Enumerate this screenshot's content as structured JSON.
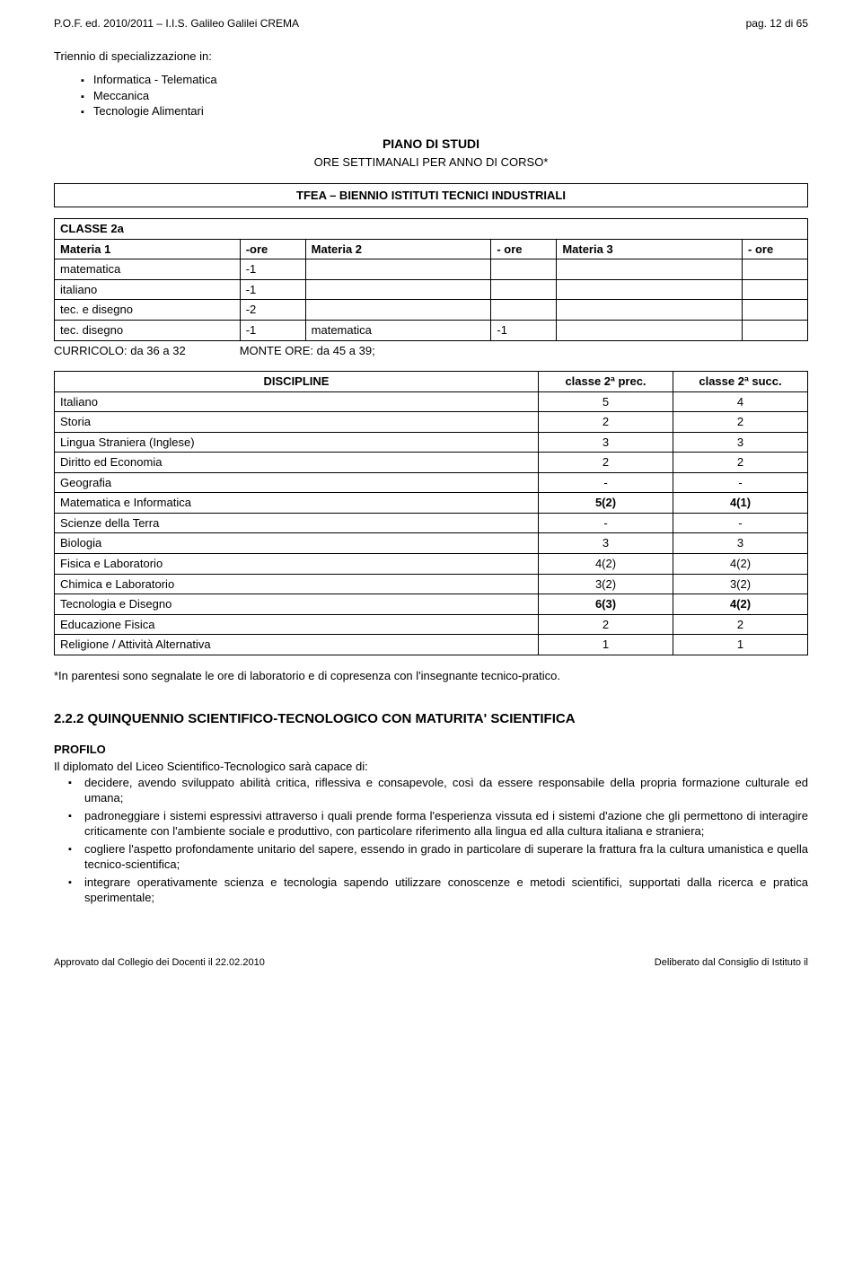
{
  "header": {
    "left": "P.O.F. ed. 2010/2011 – I.I.S. Galileo Galilei CREMA",
    "right": "pag. 12 di 65"
  },
  "intro": "Triennio di specializzazione in:",
  "spec_list": [
    "Informatica - Telematica",
    "Meccanica",
    "Tecnologie Alimentari"
  ],
  "center_title": "PIANO DI STUDI",
  "center_sub": "ORE SETTIMANALI PER ANNO DI CORSO*",
  "box_title": "TFEA – BIENNIO ISTITUTI TECNICI INDUSTRIALI",
  "classe_table": {
    "title": "CLASSE 2a",
    "cols": [
      "Materia 1",
      "-ore",
      "Materia 2",
      "- ore",
      "Materia 3",
      "- ore"
    ],
    "rows": [
      [
        "matematica",
        "-1",
        "",
        "",
        "",
        ""
      ],
      [
        "italiano",
        "-1",
        "",
        "",
        "",
        ""
      ],
      [
        "tec. e disegno",
        "-2",
        "",
        "",
        "",
        ""
      ],
      [
        "tec. disegno",
        "-1",
        "matematica",
        "-1",
        "",
        ""
      ]
    ]
  },
  "curricolo": {
    "left": "CURRICOLO: da 36 a 32",
    "right": "MONTE ORE: da 45 a 39;"
  },
  "discipline": {
    "headers": [
      "DISCIPLINE",
      "classe  2ª prec.",
      "classe  2ª succ."
    ],
    "rows": [
      [
        "Italiano",
        "5",
        "4"
      ],
      [
        "Storia",
        "2",
        "2"
      ],
      [
        "Lingua Straniera (Inglese)",
        "3",
        "3"
      ],
      [
        "Diritto ed Economia",
        "2",
        "2"
      ],
      [
        "Geografia",
        "-",
        "-"
      ],
      [
        "Matematica e Informatica",
        "5(2)",
        "4(1)",
        true
      ],
      [
        "Scienze della Terra",
        "-",
        "-"
      ],
      [
        "Biologia",
        "3",
        "3"
      ],
      [
        "Fisica e Laboratorio",
        "4(2)",
        "4(2)"
      ],
      [
        "Chimica e Laboratorio",
        "3(2)",
        "3(2)"
      ],
      [
        "Tecnologia e Disegno",
        "6(3)",
        "4(2)",
        true
      ],
      [
        "Educazione Fisica",
        "2",
        "2"
      ],
      [
        "Religione / Attività Alternativa",
        "1",
        "1"
      ]
    ]
  },
  "note": "*In parentesi sono segnalate le ore di laboratorio e di copresenza con l'insegnante tecnico-pratico.",
  "section2": {
    "title": "2.2.2 QUINQUENNIO SCIENTIFICO-TECNOLOGICO CON MATURITA' SCIENTIFICA",
    "profilo_label": "PROFILO",
    "intro": "Il diplomato del Liceo Scientifico-Tecnologico sarà capace di:",
    "bullets": [
      "decidere, avendo sviluppato abilità critica, riflessiva e consapevole, così da essere responsabile della propria formazione culturale ed umana;",
      "padroneggiare i sistemi espressivi attraverso i quali prende forma l'esperienza vissuta ed i sistemi d'azione che gli permettono di interagire criticamente con l'ambiente sociale e produttivo, con particolare riferimento alla lingua ed alla cultura italiana e straniera;",
      "cogliere l'aspetto profondamente unitario del sapere, essendo in grado in particolare di superare la frattura fra la cultura umanistica e quella tecnico-scientifica;",
      "integrare operativamente scienza e tecnologia sapendo utilizzare conoscenze e metodi scientifici, supportati dalla ricerca e pratica sperimentale;"
    ]
  },
  "footer": {
    "left": "Approvato dal Collegio dei Docenti il 22.02.2010",
    "right": "Deliberato dal Consiglio di Istituto il"
  }
}
